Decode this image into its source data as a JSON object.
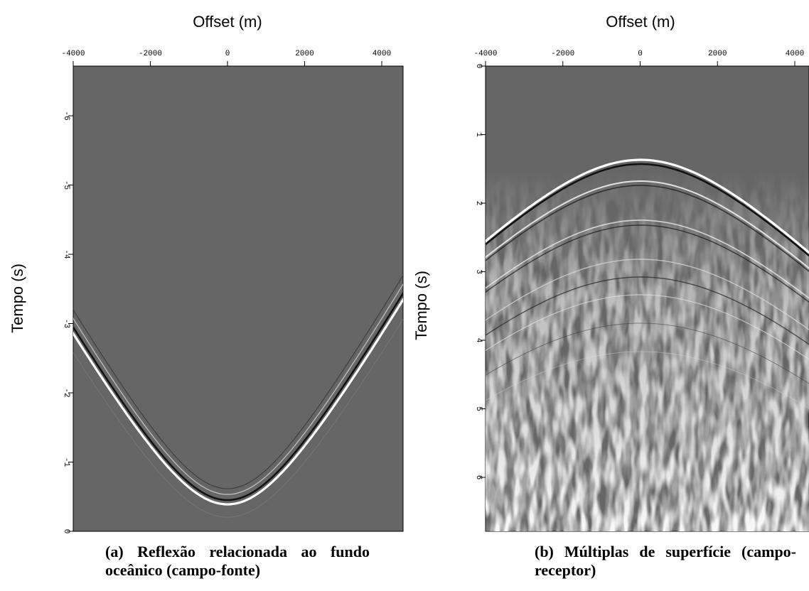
{
  "panels": [
    {
      "x_label": "Offset (m)",
      "y_label": "Tempo (s)",
      "x_ticks": [
        "-4000",
        "-2000",
        "0",
        "2000",
        "4000"
      ],
      "y_ticks": [
        "0",
        "-1",
        "-2",
        "-3",
        "-4",
        "-5",
        "-6"
      ],
      "caption": "(a) Reflexão relacionada ao fundo oceânico (campo-fonte)"
    },
    {
      "x_label": "Offset (m)",
      "y_label": "Tempo (s)",
      "x_ticks": [
        "-4000",
        "-2000",
        "0",
        "2000",
        "4000"
      ],
      "y_ticks": [
        "0",
        "1",
        "2",
        "3",
        "4",
        "5",
        "6"
      ],
      "caption": "(b) Múltiplas de superfície (campo-receptor)"
    }
  ]
}
